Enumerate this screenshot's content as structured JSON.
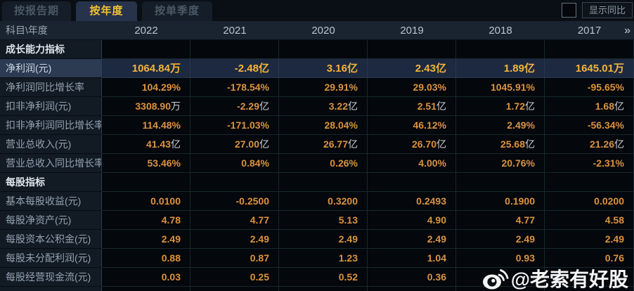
{
  "tabs": [
    {
      "label": "按报告期",
      "active": false
    },
    {
      "label": "按年度",
      "active": true
    },
    {
      "label": "按单季度",
      "active": false
    }
  ],
  "controls": {
    "checkbox_checked": false,
    "compare_label": "显示同比"
  },
  "table": {
    "corner_label": "科目\\年度",
    "years": [
      "2022",
      "2021",
      "2020",
      "2019",
      "2018",
      "2017"
    ],
    "more_icon": "»",
    "rows": [
      {
        "type": "section",
        "label": "成长能力指标"
      },
      {
        "type": "data",
        "highlight": true,
        "label": "净利润(元)",
        "values": [
          {
            "v": "1064.84",
            "u": "万"
          },
          {
            "v": "-2.48",
            "u": "亿"
          },
          {
            "v": "3.16",
            "u": "亿"
          },
          {
            "v": "2.43",
            "u": "亿"
          },
          {
            "v": "1.89",
            "u": "亿"
          },
          {
            "v": "1645.01",
            "u": "万"
          }
        ]
      },
      {
        "type": "data",
        "label": "净利润同比增长率",
        "values": [
          {
            "v": "104.29%"
          },
          {
            "v": "-178.54%"
          },
          {
            "v": "29.91%"
          },
          {
            "v": "29.03%"
          },
          {
            "v": "1045.91%"
          },
          {
            "v": "-95.65%"
          }
        ]
      },
      {
        "type": "data",
        "label": "扣非净利润(元)",
        "values": [
          {
            "v": "3308.90",
            "u": "万"
          },
          {
            "v": "-2.29",
            "u": "亿"
          },
          {
            "v": "3.22",
            "u": "亿"
          },
          {
            "v": "2.51",
            "u": "亿"
          },
          {
            "v": "1.72",
            "u": "亿"
          },
          {
            "v": "1.68",
            "u": "亿"
          }
        ]
      },
      {
        "type": "data",
        "label": "扣非净利润同比增长率",
        "values": [
          {
            "v": "114.48%"
          },
          {
            "v": "-171.03%"
          },
          {
            "v": "28.04%"
          },
          {
            "v": "46.12%"
          },
          {
            "v": "2.49%"
          },
          {
            "v": "-56.34%"
          }
        ]
      },
      {
        "type": "data",
        "label": "营业总收入(元)",
        "values": [
          {
            "v": "41.43",
            "u": "亿"
          },
          {
            "v": "27.00",
            "u": "亿"
          },
          {
            "v": "26.77",
            "u": "亿"
          },
          {
            "v": "26.70",
            "u": "亿"
          },
          {
            "v": "25.68",
            "u": "亿"
          },
          {
            "v": "21.26",
            "u": "亿"
          }
        ]
      },
      {
        "type": "data",
        "label": "营业总收入同比增长率",
        "values": [
          {
            "v": "53.46%"
          },
          {
            "v": "0.84%"
          },
          {
            "v": "0.26%"
          },
          {
            "v": "4.00%"
          },
          {
            "v": "20.76%"
          },
          {
            "v": "-2.31%"
          }
        ]
      },
      {
        "type": "section",
        "label": "每股指标"
      },
      {
        "type": "data",
        "label": "基本每股收益(元)",
        "values": [
          {
            "v": "0.0100"
          },
          {
            "v": "-0.2500"
          },
          {
            "v": "0.3200"
          },
          {
            "v": "0.2493"
          },
          {
            "v": "0.1900"
          },
          {
            "v": "0.0200"
          }
        ]
      },
      {
        "type": "data",
        "label": "每股净资产(元)",
        "values": [
          {
            "v": "4.78"
          },
          {
            "v": "4.77"
          },
          {
            "v": "5.13"
          },
          {
            "v": "4.90"
          },
          {
            "v": "4.77"
          },
          {
            "v": "4.58"
          }
        ]
      },
      {
        "type": "data",
        "label": "每股资本公积金(元)",
        "values": [
          {
            "v": "2.49"
          },
          {
            "v": "2.49"
          },
          {
            "v": "2.49"
          },
          {
            "v": "2.49"
          },
          {
            "v": "2.49"
          },
          {
            "v": "2.49"
          }
        ]
      },
      {
        "type": "data",
        "label": "每股未分配利润(元)",
        "values": [
          {
            "v": "0.88"
          },
          {
            "v": "0.87"
          },
          {
            "v": "1.23"
          },
          {
            "v": "1.04"
          },
          {
            "v": "0.93"
          },
          {
            "v": "0.76"
          }
        ]
      },
      {
        "type": "data",
        "label": "每股经营现金流(元)",
        "values": [
          {
            "v": "0.03"
          },
          {
            "v": "0.25"
          },
          {
            "v": "0.52"
          },
          {
            "v": "0.36"
          },
          {
            "v": ""
          },
          {
            "v": ""
          }
        ]
      }
    ]
  },
  "watermark": {
    "text": "@老索有好股",
    "icon": "weibo-icon"
  },
  "colors": {
    "accent_yellow": "#f2c235",
    "highlight_value": "#f2b43c",
    "value_orange": "#db9340",
    "unit_gray": "#ccd3d9",
    "header_bg": "#1a2330",
    "label_col_bg": "#121a24",
    "value_cell_bg": "#04070b",
    "highlight_row_bg": "#2c3a52"
  }
}
